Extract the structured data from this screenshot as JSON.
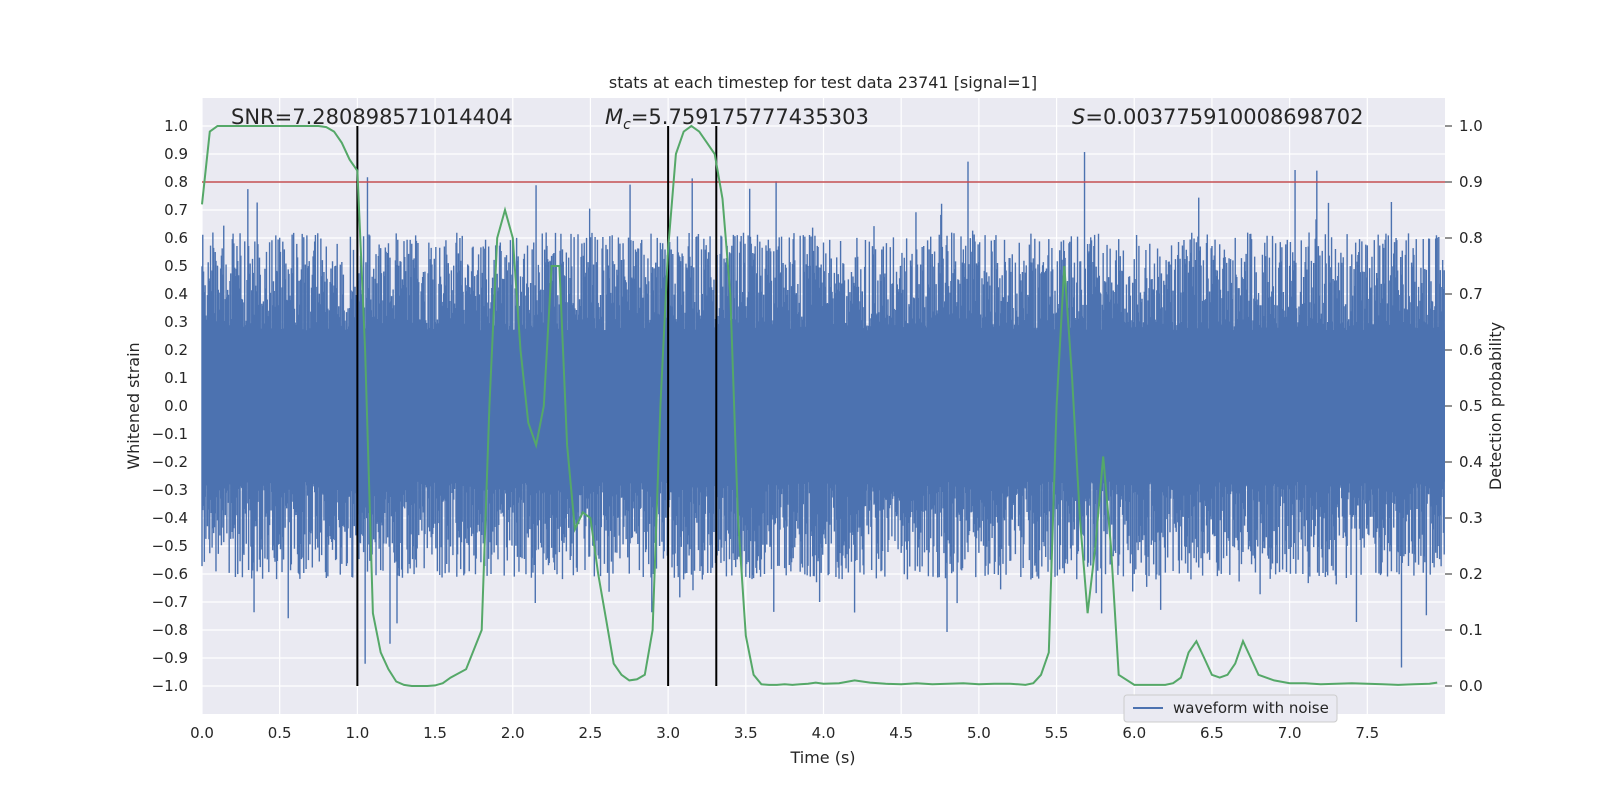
{
  "chart_data": {
    "type": "line",
    "title": "stats at each timestep for test data 23741 [signal=1]",
    "xlabel": "Time (s)",
    "ylabel_left": "Whitened strain",
    "ylabel_right": "Detection probability",
    "xlim": [
      0,
      8
    ],
    "ylim_left": [
      -1.1,
      1.1
    ],
    "ylim_right": [
      -0.05,
      1.05
    ],
    "x_ticks": [
      "0.0",
      "0.5",
      "1.0",
      "1.5",
      "2.0",
      "2.5",
      "3.0",
      "3.5",
      "4.0",
      "4.5",
      "5.0",
      "5.5",
      "6.0",
      "6.5",
      "7.0",
      "7.5"
    ],
    "left_ticks": [
      "1.0",
      "0.9",
      "0.8",
      "0.7",
      "0.6",
      "0.5",
      "0.4",
      "0.3",
      "0.2",
      "0.1",
      "0.0",
      "−0.1",
      "−0.2",
      "−0.3",
      "−0.4",
      "−0.5",
      "−0.6",
      "−0.7",
      "−0.8",
      "−0.9",
      "−1.0"
    ],
    "right_ticks": [
      "1.0",
      "0.9",
      "0.8",
      "0.7",
      "0.6",
      "0.5",
      "0.4",
      "0.3",
      "0.2",
      "0.1",
      "0.0"
    ],
    "grid": true,
    "legend": {
      "placement": "lower-right",
      "entries": [
        "waveform with noise"
      ]
    },
    "annotations": {
      "snr": "SNR=7.280898571014404",
      "mc_symbol": "M",
      "mc_subscript": "c",
      "mc_value": "=5.759175777435303",
      "s_symbol": "S",
      "s_value": "=0.003775910008698702"
    },
    "threshold_line": {
      "axis": "right",
      "y": 0.9,
      "color": "#c44e52"
    },
    "vertical_lines": [
      1.0,
      3.0,
      3.31
    ],
    "waveform": {
      "name": "waveform with noise",
      "color": "#4c72b0",
      "samples": 1600,
      "core_amplitude": 0.27
    },
    "probability": {
      "color": "#55a868",
      "x": [
        0.0,
        0.05,
        0.1,
        0.15,
        0.2,
        0.3,
        0.4,
        0.5,
        0.6,
        0.7,
        0.75,
        0.8,
        0.85,
        0.9,
        0.95,
        1.0,
        1.05,
        1.1,
        1.15,
        1.2,
        1.25,
        1.3,
        1.35,
        1.4,
        1.45,
        1.5,
        1.55,
        1.6,
        1.7,
        1.8,
        1.85,
        1.9,
        1.95,
        2.0,
        2.05,
        2.1,
        2.15,
        2.2,
        2.25,
        2.3,
        2.35,
        2.4,
        2.45,
        2.5,
        2.55,
        2.6,
        2.65,
        2.7,
        2.75,
        2.8,
        2.85,
        2.9,
        2.95,
        3.0,
        3.05,
        3.1,
        3.15,
        3.2,
        3.25,
        3.3,
        3.35,
        3.4,
        3.45,
        3.5,
        3.55,
        3.6,
        3.65,
        3.7,
        3.75,
        3.8,
        3.85,
        3.9,
        3.95,
        4.0,
        4.1,
        4.2,
        4.3,
        4.4,
        4.5,
        4.6,
        4.7,
        4.8,
        4.9,
        5.0,
        5.1,
        5.2,
        5.25,
        5.3,
        5.35,
        5.4,
        5.45,
        5.5,
        5.55,
        5.6,
        5.65,
        5.7,
        5.75,
        5.8,
        5.85,
        5.9,
        6.0,
        6.1,
        6.2,
        6.25,
        6.3,
        6.35,
        6.4,
        6.45,
        6.5,
        6.55,
        6.6,
        6.65,
        6.7,
        6.75,
        6.8,
        6.9,
        7.0,
        7.1,
        7.2,
        7.3,
        7.4,
        7.5,
        7.6,
        7.7,
        7.8,
        7.9,
        7.95
      ],
      "y": [
        0.86,
        0.99,
        1.0,
        1.0,
        1.0,
        1.0,
        1.0,
        1.0,
        1.0,
        1.0,
        1.0,
        0.998,
        0.99,
        0.97,
        0.94,
        0.92,
        0.6,
        0.13,
        0.06,
        0.03,
        0.008,
        0.002,
        0.0,
        0.0,
        0.0,
        0.001,
        0.005,
        0.015,
        0.03,
        0.1,
        0.5,
        0.8,
        0.85,
        0.8,
        0.6,
        0.47,
        0.43,
        0.5,
        0.75,
        0.75,
        0.43,
        0.28,
        0.31,
        0.3,
        0.2,
        0.12,
        0.04,
        0.02,
        0.01,
        0.012,
        0.02,
        0.1,
        0.5,
        0.78,
        0.95,
        0.99,
        1.0,
        0.99,
        0.97,
        0.95,
        0.87,
        0.7,
        0.3,
        0.09,
        0.02,
        0.003,
        0.002,
        0.002,
        0.003,
        0.002,
        0.003,
        0.004,
        0.006,
        0.004,
        0.005,
        0.01,
        0.006,
        0.004,
        0.003,
        0.005,
        0.003,
        0.004,
        0.005,
        0.003,
        0.004,
        0.004,
        0.003,
        0.002,
        0.005,
        0.02,
        0.06,
        0.5,
        0.75,
        0.55,
        0.3,
        0.13,
        0.25,
        0.41,
        0.25,
        0.02,
        0.002,
        0.002,
        0.002,
        0.005,
        0.015,
        0.06,
        0.08,
        0.05,
        0.02,
        0.015,
        0.02,
        0.04,
        0.08,
        0.05,
        0.02,
        0.01,
        0.005,
        0.005,
        0.003,
        0.004,
        0.005,
        0.004,
        0.003,
        0.002,
        0.003,
        0.004,
        0.006
      ]
    }
  }
}
